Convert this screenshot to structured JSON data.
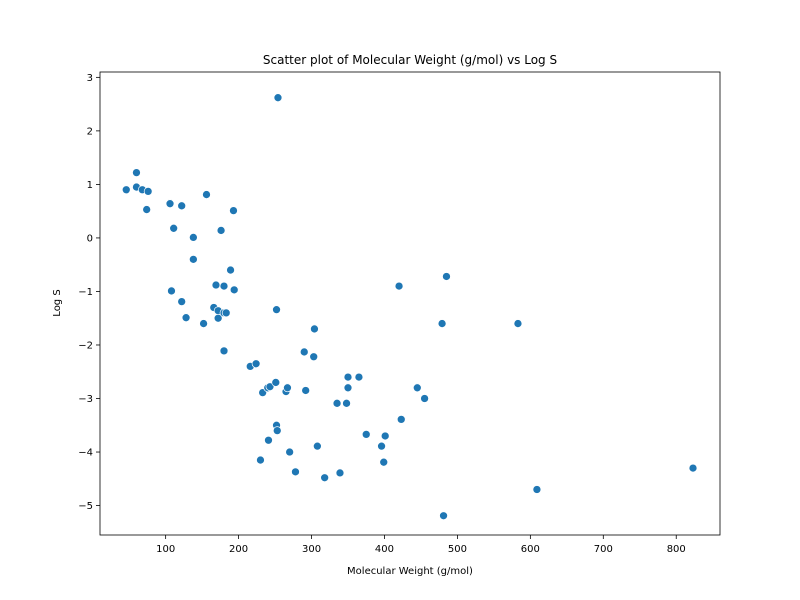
{
  "chart_data": {
    "type": "scatter",
    "title": "Scatter plot of Molecular Weight (g/mol) vs Log S",
    "xlabel": "Molecular Weight (g/mol)",
    "ylabel": "Log S",
    "xlim": [
      10,
      860
    ],
    "ylim": [
      -5.55,
      3.1
    ],
    "xticks": [
      100,
      200,
      300,
      400,
      500,
      600,
      700,
      800
    ],
    "yticks": [
      -5,
      -4,
      -3,
      -2,
      -1,
      0,
      1,
      2,
      3
    ],
    "grid": false,
    "marker_color": "#1f77b4",
    "points": [
      {
        "x": 46,
        "y": 0.9
      },
      {
        "x": 60,
        "y": 1.22
      },
      {
        "x": 60,
        "y": 0.95
      },
      {
        "x": 68,
        "y": 0.9
      },
      {
        "x": 74,
        "y": 0.53
      },
      {
        "x": 76,
        "y": 0.87
      },
      {
        "x": 106,
        "y": 0.64
      },
      {
        "x": 108,
        "y": -0.99
      },
      {
        "x": 111,
        "y": 0.18
      },
      {
        "x": 122,
        "y": 0.6
      },
      {
        "x": 122,
        "y": -1.19
      },
      {
        "x": 128,
        "y": -1.49
      },
      {
        "x": 138,
        "y": 0.01
      },
      {
        "x": 138,
        "y": -0.4
      },
      {
        "x": 152,
        "y": -1.6
      },
      {
        "x": 156,
        "y": 0.81
      },
      {
        "x": 166,
        "y": -1.3
      },
      {
        "x": 169,
        "y": -0.88
      },
      {
        "x": 172,
        "y": -1.36
      },
      {
        "x": 172,
        "y": -1.5
      },
      {
        "x": 176,
        "y": 0.14
      },
      {
        "x": 180,
        "y": -0.9
      },
      {
        "x": 180,
        "y": -1.4
      },
      {
        "x": 180,
        "y": -2.11
      },
      {
        "x": 183,
        "y": -1.4
      },
      {
        "x": 189,
        "y": -0.6
      },
      {
        "x": 193,
        "y": 0.51
      },
      {
        "x": 194,
        "y": -0.97
      },
      {
        "x": 216,
        "y": -2.4
      },
      {
        "x": 224,
        "y": -2.35
      },
      {
        "x": 230,
        "y": -4.15
      },
      {
        "x": 233,
        "y": -2.89
      },
      {
        "x": 240,
        "y": -2.8
      },
      {
        "x": 241,
        "y": -3.78
      },
      {
        "x": 243,
        "y": -2.78
      },
      {
        "x": 251,
        "y": -2.7
      },
      {
        "x": 252,
        "y": -1.34
      },
      {
        "x": 252,
        "y": -3.5
      },
      {
        "x": 253,
        "y": -3.6
      },
      {
        "x": 254,
        "y": 2.62
      },
      {
        "x": 265,
        "y": -2.87
      },
      {
        "x": 267,
        "y": -2.8
      },
      {
        "x": 270,
        "y": -4.0
      },
      {
        "x": 278,
        "y": -4.37
      },
      {
        "x": 290,
        "y": -2.13
      },
      {
        "x": 292,
        "y": -2.85
      },
      {
        "x": 303,
        "y": -2.22
      },
      {
        "x": 304,
        "y": -1.7
      },
      {
        "x": 308,
        "y": -3.89
      },
      {
        "x": 318,
        "y": -4.48
      },
      {
        "x": 335,
        "y": -3.09
      },
      {
        "x": 339,
        "y": -4.39
      },
      {
        "x": 348,
        "y": -3.09
      },
      {
        "x": 350,
        "y": -2.8
      },
      {
        "x": 350,
        "y": -2.6
      },
      {
        "x": 365,
        "y": -2.6
      },
      {
        "x": 375,
        "y": -3.67
      },
      {
        "x": 396,
        "y": -3.89
      },
      {
        "x": 399,
        "y": -4.19
      },
      {
        "x": 401,
        "y": -3.7
      },
      {
        "x": 420,
        "y": -0.9
      },
      {
        "x": 423,
        "y": -3.39
      },
      {
        "x": 445,
        "y": -2.8
      },
      {
        "x": 455,
        "y": -3.0
      },
      {
        "x": 479,
        "y": -1.6
      },
      {
        "x": 481,
        "y": -5.19
      },
      {
        "x": 485,
        "y": -0.72
      },
      {
        "x": 583,
        "y": -1.6
      },
      {
        "x": 609,
        "y": -4.7
      },
      {
        "x": 823,
        "y": -4.3
      }
    ]
  }
}
